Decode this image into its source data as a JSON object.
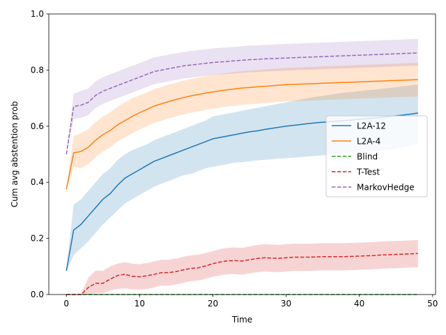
{
  "chart_data": {
    "type": "line",
    "title": "",
    "xlabel": "Time",
    "ylabel": "Cum avg abstention prob",
    "xlim": [
      -2.4,
      50.4
    ],
    "ylim": [
      0.0,
      1.0
    ],
    "xticks": [
      0,
      10,
      20,
      30,
      40,
      50
    ],
    "yticks": [
      0.0,
      0.2,
      0.4,
      0.6,
      0.8,
      1.0
    ],
    "xtick_labels": [
      "0",
      "10",
      "20",
      "30",
      "40",
      "50"
    ],
    "ytick_labels": [
      "0.0",
      "0.2",
      "0.4",
      "0.6",
      "0.8",
      "1.0"
    ],
    "grid": false,
    "legend_position": "center-right",
    "series": [
      {
        "name": "L2A-12",
        "color": "#1f77b4",
        "dash": "solid",
        "x": [
          0,
          1,
          2,
          3,
          4,
          5,
          6,
          7,
          8,
          9,
          10,
          11,
          12,
          13,
          14,
          15,
          16,
          17,
          18,
          19,
          20,
          21,
          22,
          23,
          24,
          25,
          26,
          27,
          28,
          29,
          30,
          31,
          32,
          33,
          34,
          35,
          36,
          37,
          38,
          39,
          40,
          41,
          42,
          43,
          44,
          45,
          46,
          47,
          48
        ],
        "y": [
          0.085,
          0.23,
          0.25,
          0.28,
          0.31,
          0.34,
          0.36,
          0.39,
          0.415,
          0.43,
          0.445,
          0.46,
          0.475,
          0.485,
          0.495,
          0.505,
          0.515,
          0.525,
          0.535,
          0.545,
          0.555,
          0.56,
          0.565,
          0.57,
          0.575,
          0.58,
          0.583,
          0.588,
          0.592,
          0.596,
          0.6,
          0.603,
          0.606,
          0.609,
          0.612,
          0.614,
          0.616,
          0.618,
          0.62,
          0.622,
          0.625,
          0.627,
          0.629,
          0.632,
          0.634,
          0.637,
          0.64,
          0.643,
          0.647
        ],
        "lower": [
          0.08,
          0.14,
          0.165,
          0.19,
          0.22,
          0.25,
          0.275,
          0.3,
          0.325,
          0.34,
          0.355,
          0.37,
          0.385,
          0.395,
          0.405,
          0.415,
          0.425,
          0.43,
          0.44,
          0.45,
          0.455,
          0.46,
          0.465,
          0.47,
          0.472,
          0.475,
          0.478,
          0.48,
          0.482,
          0.484,
          0.486,
          0.488,
          0.49,
          0.492,
          0.494,
          0.496,
          0.498,
          0.5,
          0.502,
          0.505,
          0.507,
          0.509,
          0.511,
          0.513,
          0.516,
          0.52,
          0.525,
          0.53,
          0.535
        ],
        "upper": [
          0.09,
          0.32,
          0.34,
          0.37,
          0.4,
          0.43,
          0.45,
          0.48,
          0.5,
          0.515,
          0.525,
          0.535,
          0.55,
          0.56,
          0.57,
          0.58,
          0.59,
          0.6,
          0.61,
          0.62,
          0.635,
          0.64,
          0.645,
          0.65,
          0.655,
          0.66,
          0.665,
          0.67,
          0.675,
          0.68,
          0.685,
          0.69,
          0.695,
          0.7,
          0.705,
          0.708,
          0.712,
          0.716,
          0.72,
          0.722,
          0.725,
          0.728,
          0.73,
          0.733,
          0.736,
          0.739,
          0.742,
          0.745,
          0.748
        ]
      },
      {
        "name": "L2A-4",
        "color": "#ff7f0e",
        "dash": "solid",
        "x": [
          0,
          1,
          2,
          3,
          4,
          5,
          6,
          7,
          8,
          9,
          10,
          11,
          12,
          13,
          14,
          15,
          16,
          17,
          18,
          19,
          20,
          21,
          22,
          23,
          24,
          25,
          26,
          27,
          28,
          29,
          30,
          31,
          32,
          33,
          34,
          35,
          36,
          37,
          38,
          39,
          40,
          41,
          42,
          43,
          44,
          45,
          46,
          47,
          48
        ],
        "y": [
          0.375,
          0.505,
          0.51,
          0.525,
          0.55,
          0.57,
          0.585,
          0.605,
          0.62,
          0.635,
          0.648,
          0.66,
          0.672,
          0.68,
          0.688,
          0.695,
          0.702,
          0.708,
          0.713,
          0.718,
          0.722,
          0.726,
          0.73,
          0.733,
          0.736,
          0.738,
          0.74,
          0.742,
          0.744,
          0.746,
          0.748,
          0.749,
          0.75,
          0.751,
          0.752,
          0.753,
          0.754,
          0.755,
          0.756,
          0.757,
          0.758,
          0.759,
          0.76,
          0.761,
          0.762,
          0.763,
          0.764,
          0.765,
          0.766
        ],
        "lower": [
          0.37,
          0.455,
          0.45,
          0.465,
          0.49,
          0.51,
          0.525,
          0.545,
          0.56,
          0.575,
          0.588,
          0.6,
          0.612,
          0.62,
          0.628,
          0.635,
          0.642,
          0.648,
          0.653,
          0.658,
          0.662,
          0.666,
          0.67,
          0.673,
          0.676,
          0.678,
          0.68,
          0.682,
          0.684,
          0.686,
          0.688,
          0.689,
          0.69,
          0.691,
          0.692,
          0.693,
          0.694,
          0.695,
          0.696,
          0.697,
          0.698,
          0.699,
          0.7,
          0.701,
          0.702,
          0.703,
          0.704,
          0.705,
          0.706
        ],
        "upper": [
          0.38,
          0.565,
          0.575,
          0.59,
          0.615,
          0.635,
          0.65,
          0.67,
          0.685,
          0.7,
          0.71,
          0.72,
          0.732,
          0.74,
          0.748,
          0.755,
          0.762,
          0.768,
          0.773,
          0.778,
          0.782,
          0.786,
          0.79,
          0.793,
          0.796,
          0.798,
          0.8,
          0.802,
          0.804,
          0.806,
          0.808,
          0.809,
          0.81,
          0.811,
          0.812,
          0.813,
          0.814,
          0.815,
          0.816,
          0.817,
          0.818,
          0.819,
          0.82,
          0.821,
          0.822,
          0.823,
          0.824,
          0.825,
          0.826
        ]
      },
      {
        "name": "Blind",
        "color": "#2ca02c",
        "dash": "dashed",
        "x": [
          0,
          48
        ],
        "y": [
          0.0,
          0.0
        ],
        "lower": [
          0.0,
          0.0
        ],
        "upper": [
          0.0,
          0.0
        ]
      },
      {
        "name": "T-Test",
        "color": "#d62728",
        "dash": "dashed",
        "x": [
          0,
          1,
          2,
          3,
          4,
          5,
          6,
          7,
          8,
          9,
          10,
          11,
          12,
          13,
          14,
          15,
          16,
          17,
          18,
          19,
          20,
          21,
          22,
          23,
          24,
          25,
          26,
          27,
          28,
          29,
          30,
          31,
          32,
          33,
          34,
          35,
          36,
          37,
          38,
          39,
          40,
          41,
          42,
          43,
          44,
          45,
          46,
          47,
          48
        ],
        "y": [
          0.0,
          0.0,
          0.0,
          0.025,
          0.04,
          0.04,
          0.055,
          0.068,
          0.072,
          0.065,
          0.063,
          0.067,
          0.072,
          0.078,
          0.078,
          0.082,
          0.088,
          0.093,
          0.095,
          0.102,
          0.11,
          0.116,
          0.12,
          0.121,
          0.119,
          0.124,
          0.128,
          0.131,
          0.13,
          0.129,
          0.131,
          0.133,
          0.133,
          0.133,
          0.134,
          0.135,
          0.135,
          0.135,
          0.135,
          0.136,
          0.137,
          0.138,
          0.139,
          0.141,
          0.142,
          0.143,
          0.144,
          0.145,
          0.146
        ],
        "lower": [
          0.0,
          0.0,
          0.0,
          0.0,
          0.005,
          0.005,
          0.015,
          0.02,
          0.022,
          0.018,
          0.017,
          0.02,
          0.025,
          0.032,
          0.032,
          0.036,
          0.042,
          0.048,
          0.05,
          0.056,
          0.063,
          0.068,
          0.072,
          0.073,
          0.071,
          0.076,
          0.079,
          0.082,
          0.081,
          0.08,
          0.082,
          0.084,
          0.084,
          0.084,
          0.085,
          0.086,
          0.086,
          0.086,
          0.086,
          0.087,
          0.088,
          0.089,
          0.09,
          0.092,
          0.093,
          0.094,
          0.095,
          0.096,
          0.097
        ],
        "upper": [
          0.0,
          0.0,
          0.0,
          0.06,
          0.085,
          0.085,
          0.1,
          0.11,
          0.115,
          0.11,
          0.108,
          0.112,
          0.118,
          0.124,
          0.124,
          0.128,
          0.135,
          0.14,
          0.142,
          0.148,
          0.155,
          0.162,
          0.166,
          0.168,
          0.166,
          0.171,
          0.176,
          0.179,
          0.178,
          0.177,
          0.179,
          0.181,
          0.181,
          0.181,
          0.182,
          0.183,
          0.183,
          0.183,
          0.183,
          0.184,
          0.185,
          0.186,
          0.187,
          0.189,
          0.19,
          0.191,
          0.192,
          0.193,
          0.194
        ]
      },
      {
        "name": "MarkovHedge",
        "color": "#9467bd",
        "dash": "dashed",
        "x": [
          0,
          1,
          2,
          3,
          4,
          5,
          6,
          7,
          8,
          9,
          10,
          11,
          12,
          13,
          14,
          15,
          16,
          17,
          18,
          19,
          20,
          21,
          22,
          23,
          24,
          25,
          26,
          27,
          28,
          29,
          30,
          31,
          32,
          33,
          34,
          35,
          36,
          37,
          38,
          39,
          40,
          41,
          42,
          43,
          44,
          45,
          46,
          47,
          48
        ],
        "y": [
          0.5,
          0.67,
          0.675,
          0.685,
          0.71,
          0.725,
          0.735,
          0.745,
          0.755,
          0.765,
          0.775,
          0.785,
          0.795,
          0.8,
          0.805,
          0.81,
          0.815,
          0.818,
          0.821,
          0.824,
          0.827,
          0.829,
          0.831,
          0.833,
          0.835,
          0.837,
          0.838,
          0.84,
          0.841,
          0.842,
          0.843,
          0.844,
          0.845,
          0.846,
          0.847,
          0.848,
          0.849,
          0.85,
          0.851,
          0.852,
          0.853,
          0.854,
          0.855,
          0.856,
          0.857,
          0.858,
          0.859,
          0.86,
          0.861
        ],
        "lower": [
          0.495,
          0.625,
          0.63,
          0.64,
          0.665,
          0.68,
          0.69,
          0.7,
          0.71,
          0.72,
          0.73,
          0.74,
          0.75,
          0.755,
          0.76,
          0.765,
          0.77,
          0.773,
          0.776,
          0.779,
          0.782,
          0.784,
          0.786,
          0.788,
          0.79,
          0.792,
          0.793,
          0.795,
          0.796,
          0.797,
          0.798,
          0.799,
          0.8,
          0.801,
          0.802,
          0.803,
          0.804,
          0.805,
          0.806,
          0.807,
          0.808,
          0.809,
          0.81,
          0.811,
          0.812,
          0.813,
          0.814,
          0.815,
          0.816
        ],
        "upper": [
          0.505,
          0.715,
          0.725,
          0.735,
          0.76,
          0.775,
          0.785,
          0.795,
          0.805,
          0.815,
          0.825,
          0.835,
          0.845,
          0.85,
          0.855,
          0.86,
          0.865,
          0.868,
          0.871,
          0.874,
          0.877,
          0.879,
          0.881,
          0.883,
          0.885,
          0.887,
          0.888,
          0.89,
          0.891,
          0.892,
          0.893,
          0.894,
          0.895,
          0.896,
          0.897,
          0.898,
          0.899,
          0.9,
          0.901,
          0.902,
          0.903,
          0.904,
          0.905,
          0.906,
          0.907,
          0.908,
          0.909,
          0.91,
          0.911
        ]
      }
    ]
  }
}
